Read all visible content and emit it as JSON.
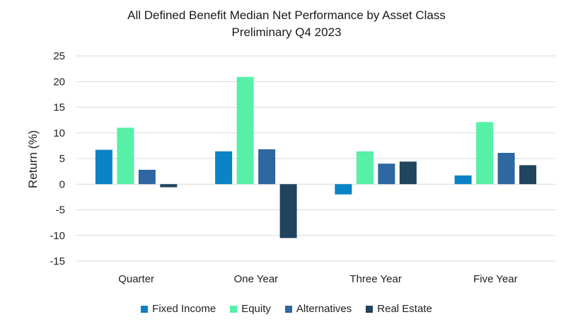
{
  "chart_data": {
    "type": "bar",
    "title": "All Defined Benefit Median Net Performance by Asset Class",
    "subtitle": "Preliminary Q4 2023",
    "xlabel": "",
    "ylabel": "Return (%)",
    "ylim": [
      -15,
      25
    ],
    "yticks": [
      25,
      20,
      15,
      10,
      5,
      0,
      -5,
      -10,
      -15
    ],
    "grid": true,
    "legend_position": "bottom",
    "categories": [
      "Quarter",
      "One Year",
      "Three Year",
      "Five Year"
    ],
    "series": [
      {
        "name": "Fixed Income",
        "color": "#0a83c6",
        "values": [
          6.7,
          6.4,
          -2.0,
          1.7
        ]
      },
      {
        "name": "Equity",
        "color": "#56f0a6",
        "values": [
          11.0,
          20.9,
          6.4,
          12.1
        ]
      },
      {
        "name": "Alternatives",
        "color": "#2e67a1",
        "values": [
          2.8,
          6.8,
          4.0,
          6.1
        ]
      },
      {
        "name": "Real Estate",
        "color": "#21445f",
        "values": [
          -0.6,
          -10.5,
          4.4,
          3.7
        ]
      }
    ]
  }
}
